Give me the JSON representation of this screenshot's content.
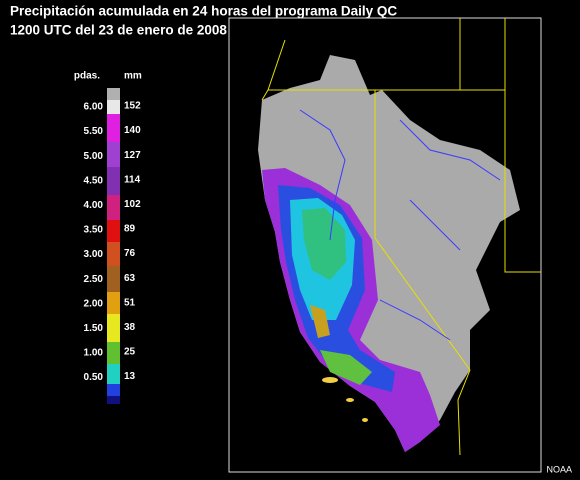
{
  "title": {
    "line1": "Precipitación acumulada en 24 horas del programa Daily QC",
    "line2": "1200 UTC del 23 de enero de 2008"
  },
  "legend": {
    "inch_unit": "pdas.",
    "mm_unit": "mm",
    "inches": [
      "6.00",
      "5.50",
      "5.00",
      "4.50",
      "4.00",
      "3.50",
      "3.00",
      "2.50",
      "2.00",
      "1.50",
      "1.00",
      "0.50"
    ],
    "mm": [
      "152",
      "140",
      "127",
      "114",
      "102",
      "89",
      "76",
      "63",
      "51",
      "38",
      "25",
      "13"
    ]
  },
  "credit": "NOAA"
}
